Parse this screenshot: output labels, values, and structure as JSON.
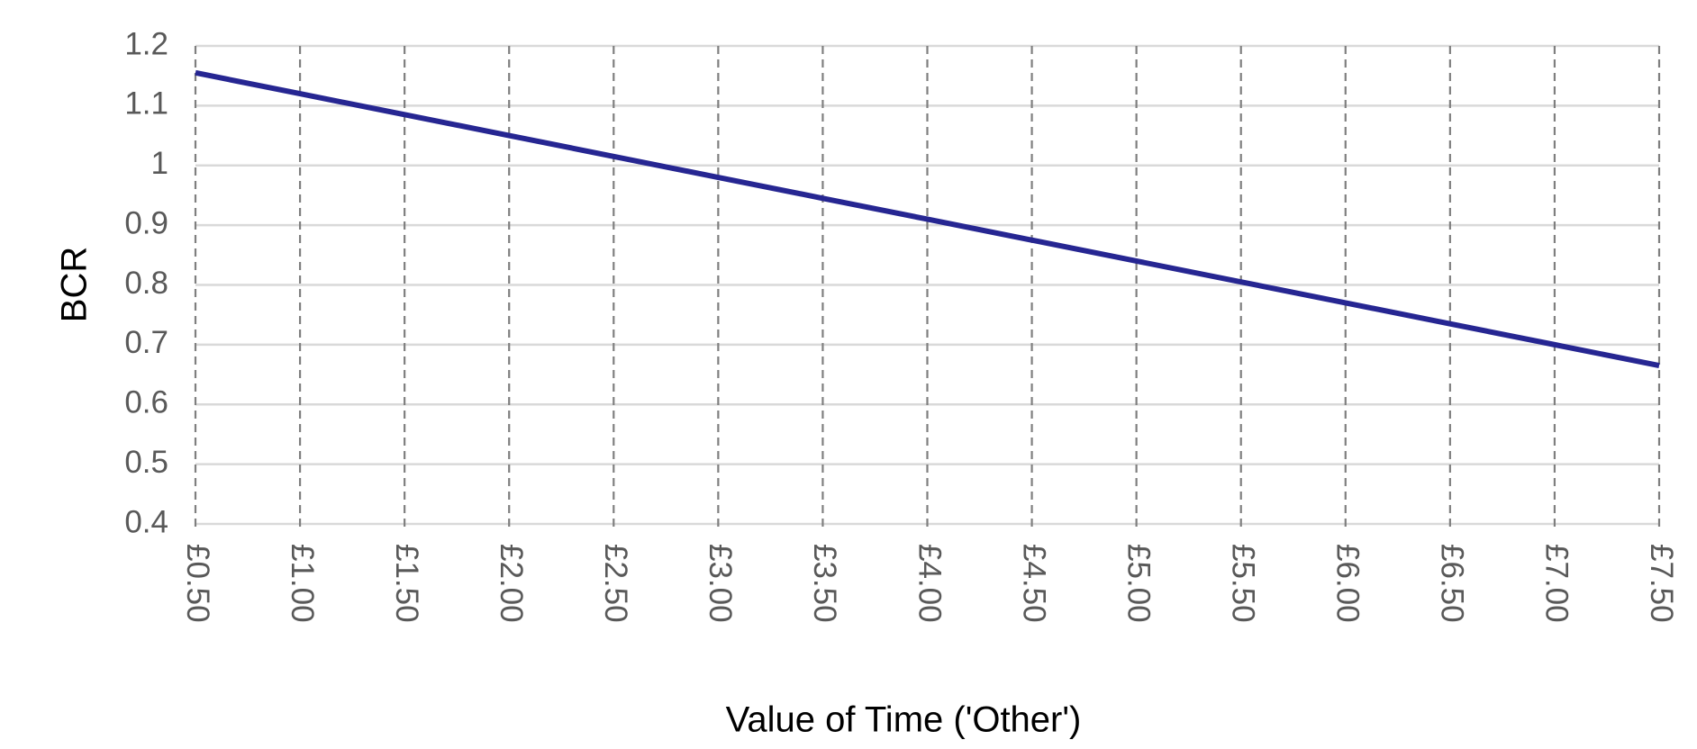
{
  "chart_data": {
    "type": "line",
    "x_label": "Value of Time ('Other')",
    "y_label": "BCR",
    "x": [
      0.5,
      1.0,
      1.5,
      2.0,
      2.5,
      3.0,
      3.5,
      4.0,
      4.5,
      5.0,
      5.5,
      6.0,
      6.5,
      7.0,
      7.5
    ],
    "values": [
      1.155,
      1.12,
      1.085,
      1.05,
      1.015,
      0.98,
      0.945,
      0.91,
      0.875,
      0.84,
      0.805,
      0.77,
      0.735,
      0.7,
      0.665
    ],
    "color": "#262692",
    "xlim": [
      0.5,
      7.5
    ],
    "xticks": [
      {
        "value": 0.5,
        "label": "£0.50"
      },
      {
        "value": 1.0,
        "label": "£1.00"
      },
      {
        "value": 1.5,
        "label": "£1.50"
      },
      {
        "value": 2.0,
        "label": "£2.00"
      },
      {
        "value": 2.5,
        "label": "£2.50"
      },
      {
        "value": 3.0,
        "label": "£3.00"
      },
      {
        "value": 3.5,
        "label": "£3.50"
      },
      {
        "value": 4.0,
        "label": "£4.00"
      },
      {
        "value": 4.5,
        "label": "£4.50"
      },
      {
        "value": 5.0,
        "label": "£5.00"
      },
      {
        "value": 5.5,
        "label": "£5.50"
      },
      {
        "value": 6.0,
        "label": "£6.00"
      },
      {
        "value": 6.5,
        "label": "£6.50"
      },
      {
        "value": 7.0,
        "label": "£7.00"
      },
      {
        "value": 7.5,
        "label": "£7.50"
      }
    ],
    "ylim": [
      0.4,
      1.2
    ],
    "yticks": [
      0.4,
      0.5,
      0.6,
      0.7,
      0.8,
      0.9,
      1,
      1.1,
      1.2
    ],
    "grid": true
  }
}
